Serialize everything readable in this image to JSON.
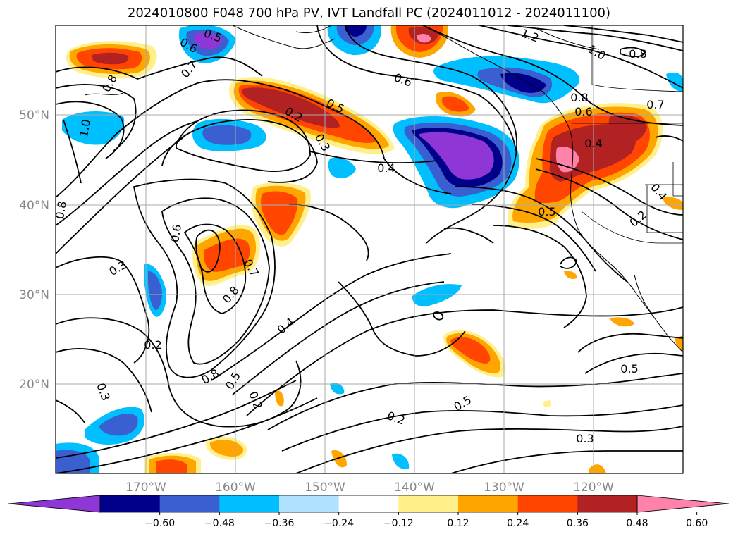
{
  "title": "2024010800 F048 700 hPa PV, IVT Landfall PC (2024011012 - 2024011100)",
  "lat_labels": [
    "50°N",
    "40°N",
    "30°N",
    "20°N"
  ],
  "lon_labels": [
    "170°W",
    "160°W",
    "150°W",
    "140°W",
    "130°W",
    "120°W"
  ],
  "contour_labels": [
    "0.5",
    "0.6",
    "0.7",
    "0.8",
    "1.0",
    "0.2",
    "0.5",
    "0.3",
    "0.4",
    "0.6",
    "1.2",
    "1.0",
    "0.8",
    "0.8",
    "0.6",
    "0.7",
    "0.4",
    "0.5",
    "0.2",
    "0.4",
    "0.6",
    "0.3",
    "0.7",
    "0.8",
    "0.2",
    "0.8",
    "0.5",
    "0.2",
    "0.4",
    "0.5",
    "0.2",
    "0.5",
    "0.3",
    "0.3",
    "0.8"
  ],
  "colorbar": {
    "colors": [
      "#8e36d6",
      "#00008b",
      "#3a5fd0",
      "#00bfff",
      "#b0e2ff",
      "#ffffff",
      "#fff08c",
      "#ffa500",
      "#ff4500",
      "#b22222",
      "#ff82ab"
    ],
    "tick_labels": [
      "−0.60",
      "−0.48",
      "−0.36",
      "−0.24",
      "−0.12",
      "0.12",
      "0.24",
      "0.36",
      "0.48",
      "0.60"
    ]
  }
}
